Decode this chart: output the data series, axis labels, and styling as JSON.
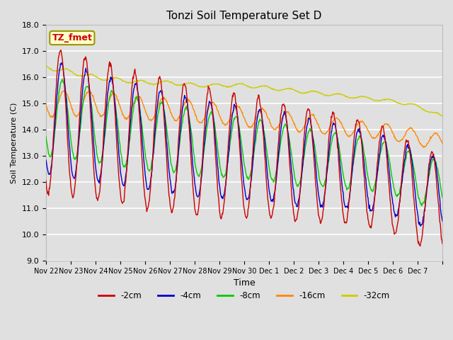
{
  "title": "Tonzi Soil Temperature Set D",
  "xlabel": "Time",
  "ylabel": "Soil Temperature (C)",
  "ylim": [
    9.0,
    18.0
  ],
  "yticks": [
    9.0,
    10.0,
    11.0,
    12.0,
    13.0,
    14.0,
    15.0,
    16.0,
    17.0,
    18.0
  ],
  "colors": {
    "-2cm": "#cc0000",
    "-4cm": "#0000cc",
    "-8cm": "#00cc00",
    "-16cm": "#ff8800",
    "-32cm": "#cccc00"
  },
  "legend_label": "TZ_fmet",
  "legend_box_facecolor": "#ffffcc",
  "legend_box_edgecolor": "#999900",
  "bg_color": "#e0e0e0",
  "grid_color": "#ffffff",
  "date_labels": [
    "Nov 22",
    "Nov 23",
    "Nov 24",
    "Nov 25",
    "Nov 26",
    "Nov 27",
    "Nov 28",
    "Nov 29",
    "Nov 30",
    "Dec 1",
    "Dec 2",
    "Dec 3",
    "Dec 4",
    "Dec 5",
    "Dec 6",
    "Dec 7"
  ],
  "series_labels": [
    "-2cm",
    "-4cm",
    "-8cm",
    "-16cm",
    "-32cm"
  ]
}
